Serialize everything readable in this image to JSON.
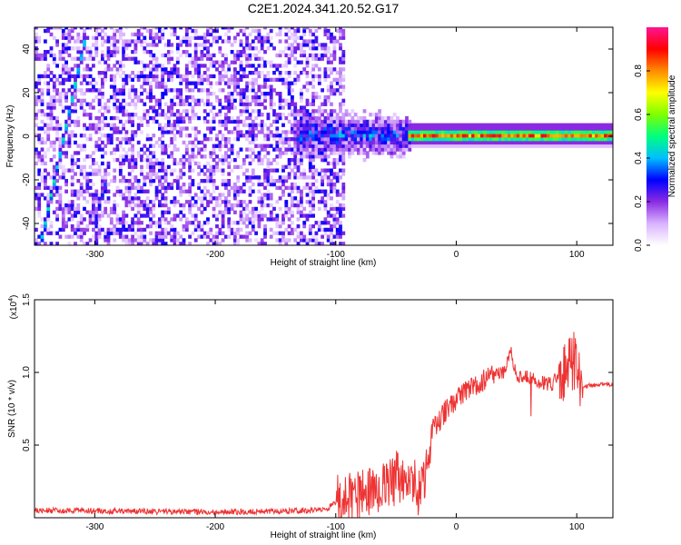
{
  "title": "C2E1.2024.341.20.52.G17",
  "chart_data": [
    {
      "type": "heatmap",
      "xlabel": "Height of straight line (km)",
      "ylabel": "Frequency (Hz)",
      "xlim": [
        -350,
        130
      ],
      "ylim": [
        -50,
        50
      ],
      "x_ticks": [
        -300,
        -200,
        -100,
        0,
        100
      ],
      "y_ticks": [
        -40,
        -20,
        0,
        20,
        40
      ],
      "colorbar": {
        "label": "Normalized spectral amplitude",
        "ticks": [
          0.0,
          0.2,
          0.4,
          0.6,
          0.8
        ],
        "range": [
          0,
          1
        ],
        "colors": [
          "#ffffff",
          "#d9b3ff",
          "#8a2be2",
          "#0000ff",
          "#00bfff",
          "#00ff7f",
          "#7fff00",
          "#ffff00",
          "#ff8c00",
          "#ff0000",
          "#ff1493"
        ]
      },
      "features": [
        {
          "name": "noise region",
          "x_range": [
            -350,
            -95
          ],
          "amplitude": 0.2
        },
        {
          "name": "diagonal trace",
          "from": [
            -345,
            -47
          ],
          "to": [
            -310,
            42
          ],
          "amplitude": 0.45
        },
        {
          "name": "faint diagonal trace",
          "from": [
            -302,
            -42
          ],
          "to": [
            -292,
            -22
          ],
          "amplitude": 0.35
        },
        {
          "name": "transition",
          "x_range": [
            -135,
            -40
          ],
          "freq_spread": 10,
          "amplitude": 0.35
        },
        {
          "name": "signal line",
          "x_range": [
            -40,
            130
          ],
          "frequency": 0,
          "amplitude": 0.95
        }
      ]
    },
    {
      "type": "line",
      "xlabel": "Height of straight line (km)",
      "ylabel": "SNR (10 * v/v)",
      "scale_note": "(x10",
      "scale_exponent": "4",
      "xlim": [
        -350,
        130
      ],
      "ylim": [
        0,
        1.5
      ],
      "x_ticks": [
        -300,
        -200,
        -100,
        0,
        100
      ],
      "y_ticks": [
        0.5,
        1.0,
        1.5
      ],
      "y_tick_labels": [
        "0.5",
        "1.0",
        "1.5"
      ],
      "line_color": "#ee3333",
      "series": [
        {
          "x": [
            -350,
            -200,
            -110,
            -100,
            -80,
            -60,
            -50,
            -40,
            -30,
            -20,
            -10,
            0,
            10,
            20,
            30,
            40,
            45,
            50,
            60,
            70,
            80,
            85,
            90,
            95,
            100,
            105,
            110,
            130
          ],
          "values": [
            0.05,
            0.04,
            0.05,
            0.1,
            0.15,
            0.2,
            0.3,
            0.25,
            0.2,
            0.6,
            0.72,
            0.82,
            0.88,
            0.93,
            0.97,
            1.0,
            1.15,
            0.98,
            0.96,
            0.93,
            0.92,
            1.0,
            0.98,
            1.1,
            1.05,
            0.9,
            0.91,
            0.92
          ]
        }
      ]
    }
  ]
}
